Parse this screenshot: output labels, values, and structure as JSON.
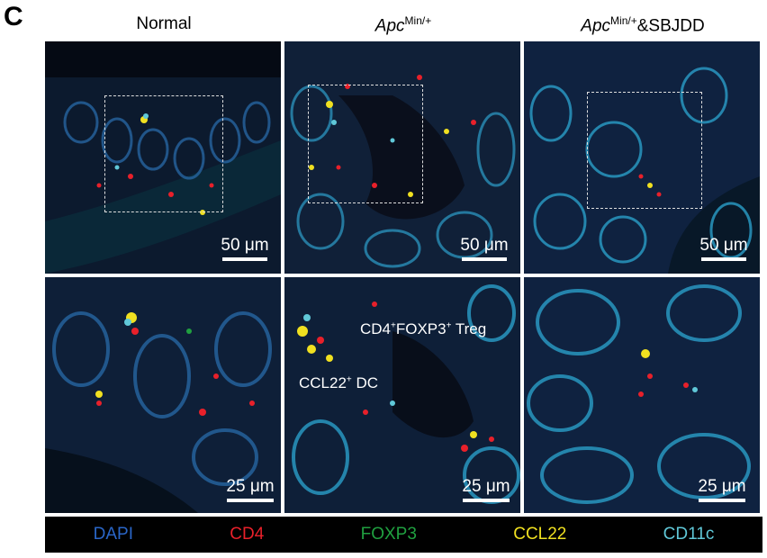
{
  "panel_letter": "C",
  "columns": [
    {
      "title": "Normal"
    },
    {
      "title_italic": "Apc",
      "title_sup": "Min/+",
      "title_suffix": ""
    },
    {
      "title_italic": "Apc",
      "title_sup": "Min/+",
      "title_suffix": "&SBJDD"
    }
  ],
  "scale_bars": {
    "top": "50 μm",
    "bottom": "25 μm"
  },
  "annotations": {
    "treg_main": "CD4",
    "treg_sup1": "+",
    "treg_mid": "FOXP3",
    "treg_sup2": "+",
    "treg_end": " Treg",
    "dc_main": "CCL22",
    "dc_sup": "+",
    "dc_end": " DC"
  },
  "legend": [
    {
      "label": "DAPI",
      "color": "#2a66c8"
    },
    {
      "label": "CD4",
      "color": "#e8202a"
    },
    {
      "label": "FOXP3",
      "color": "#20a040"
    },
    {
      "label": "CCL22",
      "color": "#f0e020"
    },
    {
      "label": "CD11c",
      "color": "#60c8d8"
    }
  ]
}
